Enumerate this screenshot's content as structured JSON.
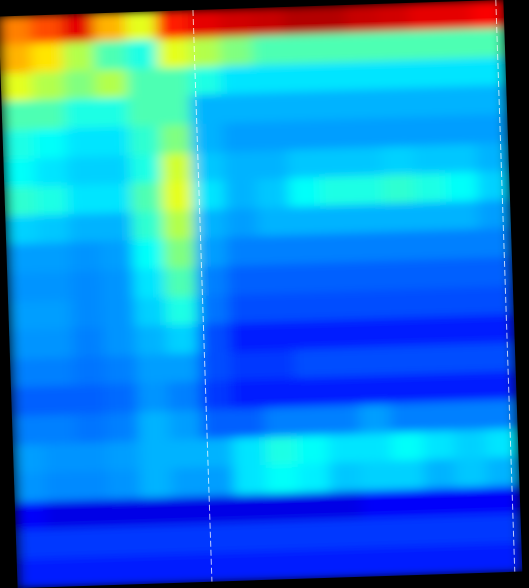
{
  "chart_data": {
    "type": "heatmap",
    "tick_labels": false,
    "zlim": [
      0,
      1
    ],
    "cells": [
      [
        0.75,
        0.8,
        0.9,
        0.7,
        0.6,
        0.85,
        0.9,
        0.92,
        0.93,
        0.95,
        0.95,
        0.93,
        0.92,
        0.9,
        0.9,
        0.88
      ],
      [
        0.7,
        0.65,
        0.55,
        0.45,
        0.4,
        0.6,
        0.55,
        0.5,
        0.45,
        0.45,
        0.45,
        0.45,
        0.45,
        0.45,
        0.45,
        0.45
      ],
      [
        0.6,
        0.55,
        0.5,
        0.55,
        0.45,
        0.45,
        0.4,
        0.35,
        0.35,
        0.35,
        0.35,
        0.35,
        0.35,
        0.35,
        0.35,
        0.35
      ],
      [
        0.45,
        0.45,
        0.4,
        0.4,
        0.45,
        0.45,
        0.3,
        0.3,
        0.3,
        0.3,
        0.3,
        0.3,
        0.3,
        0.3,
        0.3,
        0.3
      ],
      [
        0.4,
        0.38,
        0.35,
        0.35,
        0.42,
        0.5,
        0.3,
        0.28,
        0.28,
        0.28,
        0.28,
        0.28,
        0.28,
        0.28,
        0.28,
        0.28
      ],
      [
        0.38,
        0.35,
        0.33,
        0.33,
        0.4,
        0.58,
        0.32,
        0.3,
        0.3,
        0.32,
        0.32,
        0.32,
        0.33,
        0.32,
        0.32,
        0.3
      ],
      [
        0.42,
        0.4,
        0.35,
        0.35,
        0.45,
        0.6,
        0.35,
        0.3,
        0.32,
        0.38,
        0.4,
        0.4,
        0.42,
        0.4,
        0.38,
        0.33
      ],
      [
        0.33,
        0.32,
        0.3,
        0.3,
        0.42,
        0.55,
        0.3,
        0.28,
        0.3,
        0.3,
        0.3,
        0.3,
        0.3,
        0.3,
        0.3,
        0.28
      ],
      [
        0.28,
        0.28,
        0.27,
        0.28,
        0.38,
        0.5,
        0.28,
        0.25,
        0.25,
        0.25,
        0.25,
        0.25,
        0.25,
        0.25,
        0.25,
        0.25
      ],
      [
        0.27,
        0.27,
        0.26,
        0.27,
        0.35,
        0.45,
        0.25,
        0.22,
        0.22,
        0.22,
        0.22,
        0.22,
        0.22,
        0.22,
        0.22,
        0.22
      ],
      [
        0.28,
        0.28,
        0.26,
        0.27,
        0.33,
        0.4,
        0.24,
        0.2,
        0.2,
        0.2,
        0.2,
        0.2,
        0.2,
        0.2,
        0.2,
        0.2
      ],
      [
        0.27,
        0.27,
        0.25,
        0.27,
        0.3,
        0.33,
        0.2,
        0.15,
        0.15,
        0.15,
        0.15,
        0.15,
        0.15,
        0.15,
        0.15,
        0.15
      ],
      [
        0.25,
        0.25,
        0.24,
        0.25,
        0.28,
        0.28,
        0.2,
        0.18,
        0.18,
        0.2,
        0.2,
        0.2,
        0.2,
        0.2,
        0.2,
        0.2
      ],
      [
        0.22,
        0.22,
        0.22,
        0.23,
        0.27,
        0.25,
        0.18,
        0.15,
        0.15,
        0.15,
        0.15,
        0.15,
        0.15,
        0.15,
        0.15,
        0.15
      ],
      [
        0.25,
        0.25,
        0.24,
        0.25,
        0.3,
        0.28,
        0.22,
        0.22,
        0.25,
        0.25,
        0.25,
        0.28,
        0.25,
        0.25,
        0.25,
        0.25
      ],
      [
        0.28,
        0.27,
        0.27,
        0.28,
        0.3,
        0.3,
        0.3,
        0.35,
        0.4,
        0.38,
        0.35,
        0.35,
        0.38,
        0.35,
        0.33,
        0.35
      ],
      [
        0.27,
        0.26,
        0.26,
        0.27,
        0.3,
        0.28,
        0.28,
        0.35,
        0.38,
        0.36,
        0.32,
        0.33,
        0.33,
        0.3,
        0.32,
        0.3
      ],
      [
        0.12,
        0.1,
        0.1,
        0.1,
        0.1,
        0.1,
        0.1,
        0.1,
        0.1,
        0.1,
        0.1,
        0.12,
        0.12,
        0.12,
        0.12,
        0.12
      ],
      [
        0.18,
        0.18,
        0.18,
        0.18,
        0.18,
        0.18,
        0.18,
        0.18,
        0.18,
        0.18,
        0.18,
        0.18,
        0.18,
        0.18,
        0.18,
        0.18
      ],
      [
        0.15,
        0.15,
        0.15,
        0.15,
        0.15,
        0.15,
        0.15,
        0.15,
        0.15,
        0.15,
        0.15,
        0.15,
        0.15,
        0.15,
        0.15,
        0.15
      ]
    ]
  }
}
